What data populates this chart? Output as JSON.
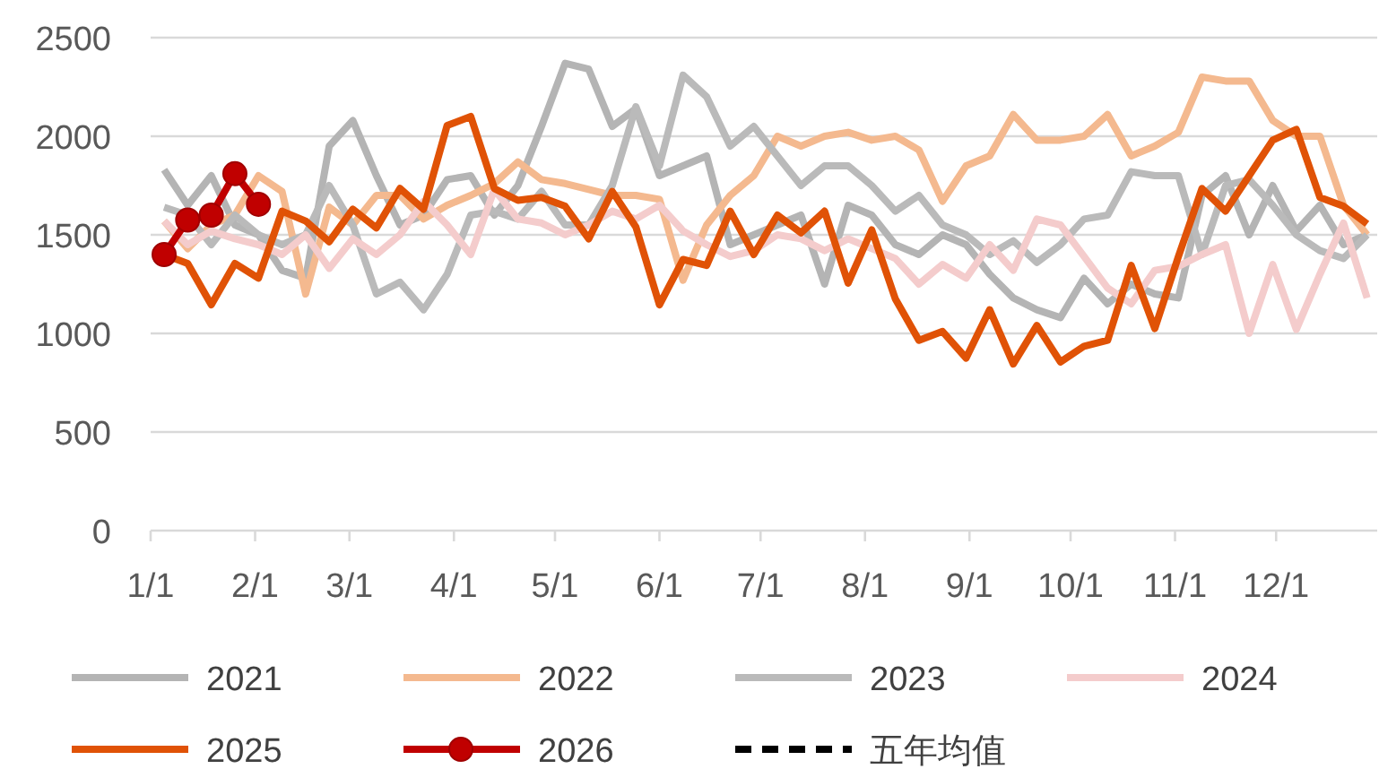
{
  "chart_data": {
    "type": "line",
    "x": [
      "--01-05",
      "--01-12",
      "--01-19",
      "--01-26",
      "--02-02",
      "--02-09",
      "--02-16",
      "--02-23",
      "--03-02",
      "--03-09",
      "--03-16",
      "--03-23",
      "--03-30",
      "--04-06",
      "--04-13",
      "--04-20",
      "--04-27",
      "--05-04",
      "--05-11",
      "--05-18",
      "--05-25",
      "--06-01",
      "--06-08",
      "--06-15",
      "--06-22",
      "--06-29",
      "--07-06",
      "--07-13",
      "--07-20",
      "--07-27",
      "--08-03",
      "--08-10",
      "--08-17",
      "--08-24",
      "--08-31",
      "--09-07",
      "--09-14",
      "--09-21",
      "--09-28",
      "--10-05",
      "--10-12",
      "--10-19",
      "--10-26",
      "--11-02",
      "--11-09",
      "--11-16",
      "--11-23",
      "--11-30",
      "--12-07",
      "--12-14",
      "--12-21",
      "--12-28"
    ],
    "series": [
      {
        "name": "2021",
        "color": "#b4b4b4",
        "values": [
          1830,
          1650,
          1800,
          1550,
          1500,
          1320,
          1280,
          1950,
          2080,
          1800,
          1550,
          1600,
          1780,
          1800,
          1600,
          1750,
          2050,
          2370,
          2340,
          2050,
          2140,
          1800,
          1850,
          1900,
          1450,
          1500,
          1550,
          1600,
          1250,
          1650,
          1600,
          1450,
          1400,
          1500,
          1450,
          1300,
          1180,
          1120,
          1080,
          1280,
          1150,
          1250,
          1200,
          1180,
          1700,
          1800,
          1500,
          1750,
          1520,
          1650,
          1450,
          1500
        ]
      },
      {
        "name": "2022",
        "color": "#f4b98f",
        "values": [
          1570,
          1430,
          1550,
          1600,
          1800,
          1720,
          1200,
          1640,
          1550,
          1700,
          1700,
          1580,
          1650,
          1700,
          1760,
          1870,
          1780,
          1760,
          1730,
          1700,
          1700,
          1680,
          1270,
          1550,
          1700,
          1800,
          2000,
          1950,
          2000,
          2020,
          1980,
          2000,
          1930,
          1670,
          1850,
          1900,
          2110,
          1980,
          1980,
          2000,
          2110,
          1900,
          1950,
          2020,
          2300,
          2280,
          2280,
          2080,
          2000,
          2000,
          1650,
          1500
        ]
      },
      {
        "name": "2023",
        "color": "#bababa",
        "values": [
          1640,
          1600,
          1450,
          1600,
          1500,
          1450,
          1500,
          1750,
          1550,
          1200,
          1260,
          1120,
          1300,
          1600,
          1620,
          1580,
          1720,
          1550,
          1550,
          1750,
          2150,
          1850,
          2310,
          2200,
          1950,
          2050,
          1900,
          1750,
          1850,
          1850,
          1750,
          1620,
          1700,
          1550,
          1500,
          1400,
          1470,
          1360,
          1450,
          1580,
          1600,
          1820,
          1800,
          1800,
          1400,
          1750,
          1780,
          1650,
          1500,
          1420,
          1380,
          1500
        ]
      },
      {
        "name": "2024",
        "color": "#f4cccc",
        "values": [
          1570,
          1450,
          1520,
          1480,
          1450,
          1400,
          1500,
          1330,
          1480,
          1400,
          1500,
          1670,
          1550,
          1400,
          1730,
          1580,
          1560,
          1500,
          1550,
          1620,
          1580,
          1650,
          1520,
          1450,
          1390,
          1420,
          1500,
          1480,
          1420,
          1480,
          1430,
          1380,
          1250,
          1350,
          1280,
          1450,
          1320,
          1580,
          1550,
          1390,
          1230,
          1150,
          1320,
          1340,
          1400,
          1450,
          1000,
          1350,
          1020,
          1300,
          1560,
          1180
        ]
      },
      {
        "name": "2025",
        "color": "#e05206",
        "values": [
          1400,
          1355,
          1145,
          1355,
          1280,
          1620,
          1570,
          1465,
          1630,
          1535,
          1735,
          1630,
          2055,
          2100,
          1735,
          1675,
          1690,
          1645,
          1480,
          1720,
          1540,
          1145,
          1375,
          1345,
          1620,
          1400,
          1600,
          1510,
          1620,
          1255,
          1525,
          1175,
          965,
          1010,
          875,
          1120,
          845,
          1040,
          855,
          935,
          965,
          1345,
          1025,
          1390,
          1735,
          1620,
          1800,
          1980,
          2035,
          1690,
          1645,
          1555
        ]
      },
      {
        "name": "2026",
        "color": "#c00000",
        "marker": "circle",
        "values": [
          1400,
          1575,
          1600,
          1810,
          1655,
          null,
          null,
          null,
          null,
          null,
          null,
          null,
          null,
          null,
          null,
          null,
          null,
          null,
          null,
          null,
          null,
          null,
          null,
          null,
          null,
          null,
          null,
          null,
          null,
          null,
          null,
          null,
          null,
          null,
          null,
          null,
          null,
          null,
          null,
          null,
          null,
          null,
          null,
          null,
          null,
          null,
          null,
          null,
          null,
          null,
          null,
          null
        ]
      },
      {
        "name": "五年均值",
        "color": "#000000",
        "line_style": "dashed",
        "values": [
          null,
          null,
          null,
          null,
          null,
          null,
          null,
          null,
          null,
          null,
          null,
          null,
          null,
          null,
          null,
          null,
          null,
          null,
          null,
          null,
          null,
          null,
          null,
          null,
          null,
          null,
          null,
          null,
          null,
          null,
          null,
          null,
          null,
          null,
          null,
          null,
          null,
          null,
          null,
          null,
          null,
          null,
          null,
          null,
          null,
          null,
          null,
          null,
          null,
          null,
          null,
          null
        ]
      }
    ],
    "xlim": [
      "--01-01",
      "--12-31"
    ],
    "xticks": [
      {
        "value": "--01-01",
        "label": "1/1"
      },
      {
        "value": "--02-01",
        "label": "2/1"
      },
      {
        "value": "--03-01",
        "label": "3/1"
      },
      {
        "value": "--04-01",
        "label": "4/1"
      },
      {
        "value": "--05-01",
        "label": "5/1"
      },
      {
        "value": "--06-01",
        "label": "6/1"
      },
      {
        "value": "--07-01",
        "label": "7/1"
      },
      {
        "value": "--08-01",
        "label": "8/1"
      },
      {
        "value": "--09-01",
        "label": "9/1"
      },
      {
        "value": "--10-01",
        "label": "10/1"
      },
      {
        "value": "--11-01",
        "label": "11/1"
      },
      {
        "value": "--12-01",
        "label": "12/1"
      }
    ],
    "ylim": [
      0,
      2500
    ],
    "yticks": [
      0,
      500,
      1000,
      1500,
      2000,
      2500
    ],
    "grid": "y",
    "legend": "bottom"
  }
}
